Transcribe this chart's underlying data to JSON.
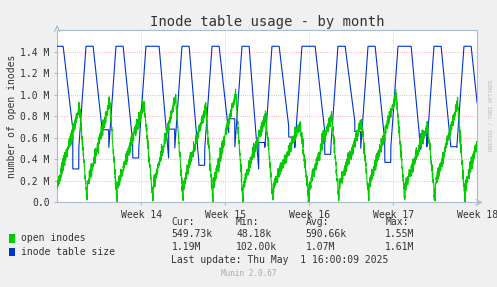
{
  "title": "Inode table usage - by month",
  "ylabel": "number of open inodes",
  "fig_bg_color": "#f0f0f0",
  "plot_bg_color": "#ffffff",
  "grid_color": "#ff9999",
  "blue_grid_color": "#aaccff",
  "ylim": [
    0,
    1600000.0
  ],
  "yticks": [
    0.0,
    200000.0,
    400000.0,
    600000.0,
    800000.0,
    1000000.0,
    1200000.0,
    1400000.0
  ],
  "ytick_labels": [
    "0.0",
    "0.2 M",
    "0.4 M",
    "0.6 M",
    "0.8 M",
    "1.0 M",
    "1.2 M",
    "1.4 M"
  ],
  "xtick_labels": [
    "Week 14",
    "Week 15",
    "Week 16",
    "Week 17",
    "Week 18"
  ],
  "xtick_positions": [
    7,
    14,
    21,
    28,
    35
  ],
  "xlim": [
    0,
    35
  ],
  "green_color": "#00cc00",
  "blue_color": "#0033cc",
  "legend_entries": [
    "open inodes",
    "inode table size"
  ],
  "legend_colors": [
    "#00cc00",
    "#0033cc"
  ],
  "stats_header": [
    "Cur:",
    "Min:",
    "Avg:",
    "Max:"
  ],
  "stats_green": [
    "549.73k",
    "48.18k",
    "590.66k",
    "1.55M"
  ],
  "stats_blue": [
    "1.19M",
    "102.00k",
    "1.07M",
    "1.61M"
  ],
  "last_update": "Last update: Thu May  1 16:00:09 2025",
  "munin_version": "Munin 2.0.67",
  "watermark": "RRDTOOL / TOBI OETIKER",
  "title_fontsize": 10,
  "axis_fontsize": 7,
  "tick_fontsize": 7,
  "legend_fontsize": 7,
  "stats_fontsize": 7
}
